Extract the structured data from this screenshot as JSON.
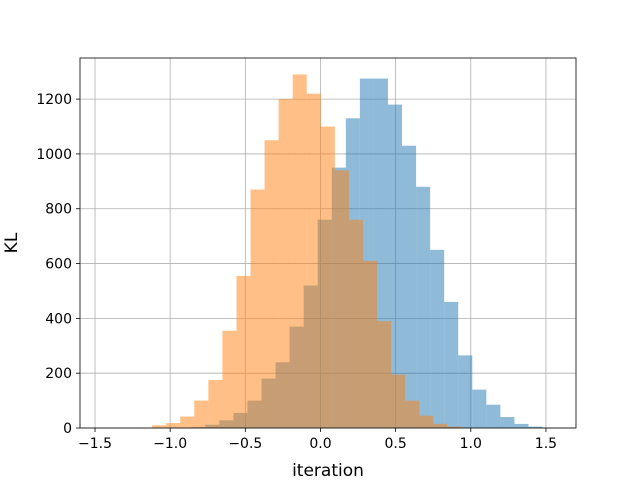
{
  "chart_data": {
    "type": "bar",
    "xlabel": "iteration",
    "ylabel": "KL",
    "xlim": [
      -1.6,
      1.7
    ],
    "ylim": [
      0,
      1350
    ],
    "xticks": [
      -1.5,
      -1.0,
      -0.5,
      0.0,
      0.5,
      1.0,
      1.5
    ],
    "xtick_labels": [
      "−1.5",
      "−1.0",
      "−0.5",
      "0.0",
      "0.5",
      "1.0",
      "1.5"
    ],
    "yticks": [
      0,
      200,
      400,
      600,
      800,
      1000,
      1200
    ],
    "ytick_labels": [
      "0",
      "200",
      "400",
      "600",
      "800",
      "1000",
      "1200"
    ],
    "grid": true,
    "bin_width": 0.0935,
    "series": [
      {
        "color": "#1f77b4",
        "alpha": 0.5,
        "x_start": -0.86,
        "values": [
          3,
          12,
          28,
          55,
          100,
          180,
          240,
          370,
          520,
          760,
          950,
          1130,
          1275,
          1275,
          1180,
          1030,
          880,
          650,
          460,
          265,
          140,
          85,
          40,
          15,
          5
        ]
      },
      {
        "color": "#ff7f0e",
        "alpha": 0.5,
        "x_start": -1.12,
        "values": [
          10,
          18,
          42,
          100,
          175,
          355,
          555,
          870,
          1050,
          1200,
          1290,
          1220,
          1100,
          940,
          760,
          610,
          390,
          195,
          100,
          45,
          15,
          5
        ]
      }
    ]
  }
}
